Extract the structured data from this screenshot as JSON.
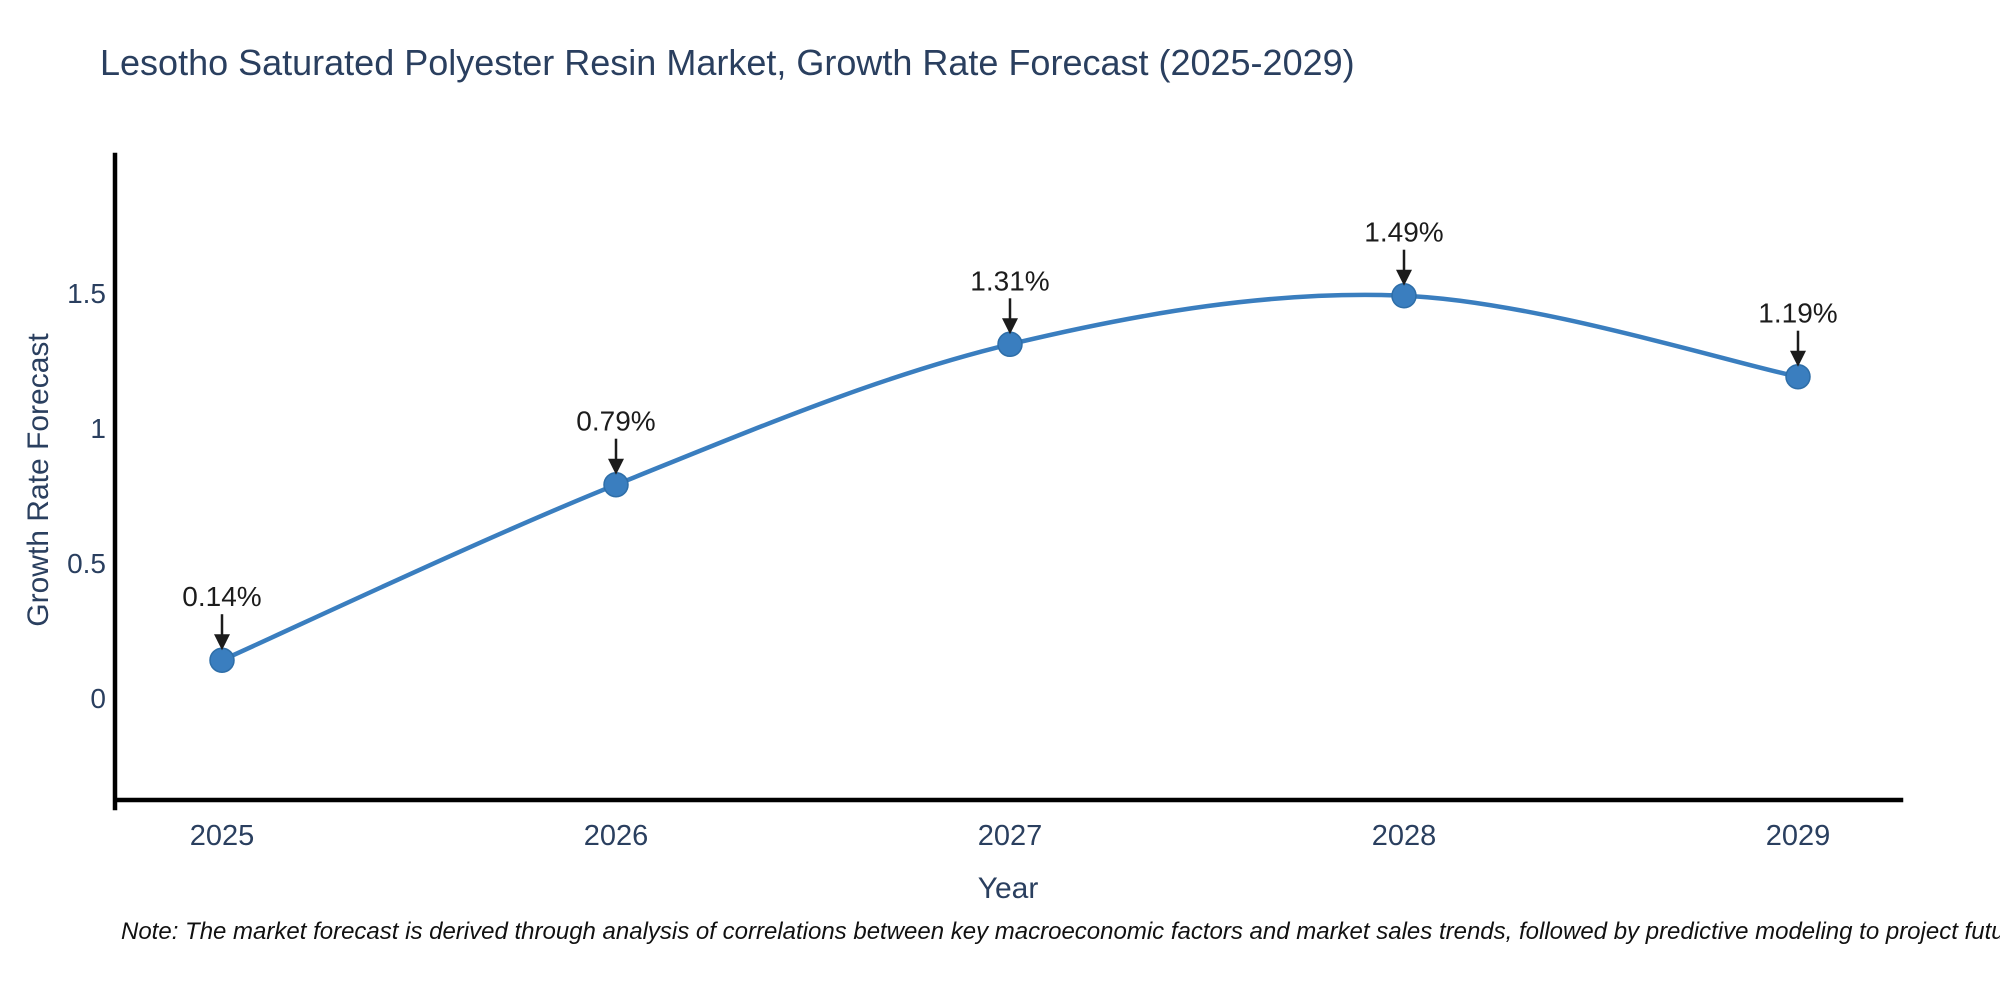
{
  "title": "Lesotho Saturated Polyester Resin Market, Growth Rate Forecast (2025-2029)",
  "note": "Note: The market forecast is derived through analysis of correlations between key macroeconomic factors and market sales trends, followed by predictive modeling to project future sales",
  "chart_data": {
    "type": "line",
    "line_shape": "spline",
    "x": [
      2025,
      2026,
      2027,
      2028,
      2029
    ],
    "y": [
      0.14,
      0.79,
      1.31,
      1.49,
      1.19
    ],
    "point_labels": [
      "0.14%",
      "0.79%",
      "1.31%",
      "1.49%",
      "1.19%"
    ],
    "xticks": [
      "2025",
      "2026",
      "2027",
      "2028",
      "2029"
    ],
    "yticks": [
      "0",
      "0.5",
      "1",
      "1.5"
    ],
    "ytick_values": [
      0,
      0.5,
      1,
      1.5
    ],
    "xlabel": "Year",
    "ylabel": "Growth Rate Forecast",
    "ylim": [
      -0.38,
      2.01
    ],
    "grid": false,
    "legend": "none",
    "colors": {
      "line": "#3a7ebf",
      "marker": "#3a7ebf",
      "marker_edge": "#2e6ea8",
      "axis": "#000000",
      "tick_label": "#2a3f5f",
      "axis_title": "#2a3f5f",
      "annotation": "#1c1c1c",
      "title": "#2a3f5f",
      "background": "#ffffff"
    }
  }
}
